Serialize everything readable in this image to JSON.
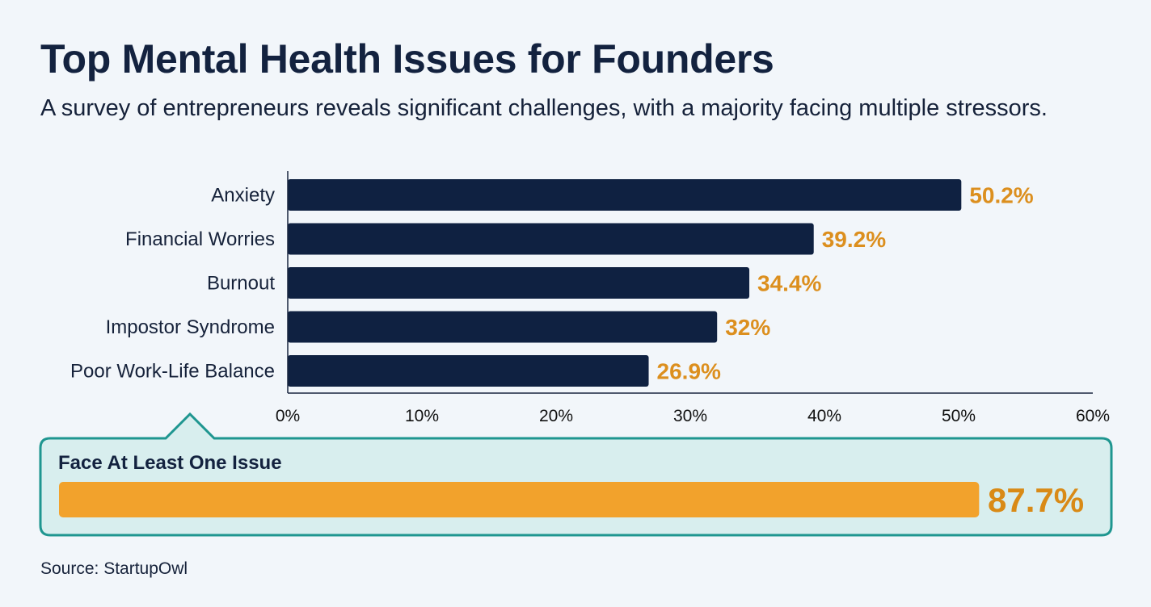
{
  "title": "Top Mental Health Issues for Founders",
  "subtitle": "A survey of entrepreneurs reveals significant challenges, with a majority facing multiple stressors.",
  "source": "Source: StartupOwl",
  "colors": {
    "bar": "#0f2141",
    "value_label": "#dc8f1e",
    "callout_border": "#1f9690",
    "callout_bg": "#d8eeee",
    "callout_bar": "#f2a22c",
    "background": "#f2f6fa"
  },
  "chart_data": {
    "type": "bar",
    "orientation": "horizontal",
    "categories": [
      "Anxiety",
      "Financial Worries",
      "Burnout",
      "Impostor Syndrome",
      "Poor Work-Life Balance"
    ],
    "values": [
      50.2,
      39.2,
      34.4,
      32,
      26.9
    ],
    "value_labels": [
      "50.2%",
      "39.2%",
      "34.4%",
      "32%",
      "26.9%"
    ],
    "xlim": [
      0,
      60
    ],
    "xticks": [
      0,
      10,
      20,
      30,
      40,
      50,
      60
    ],
    "xtick_labels": [
      "0%",
      "10%",
      "20%",
      "30%",
      "40%",
      "50%",
      "60%"
    ],
    "grid": false,
    "xlabel": "",
    "ylabel": ""
  },
  "callout": {
    "label": "Face At Least One Issue",
    "value": 87.7,
    "value_label": "87.7%"
  }
}
